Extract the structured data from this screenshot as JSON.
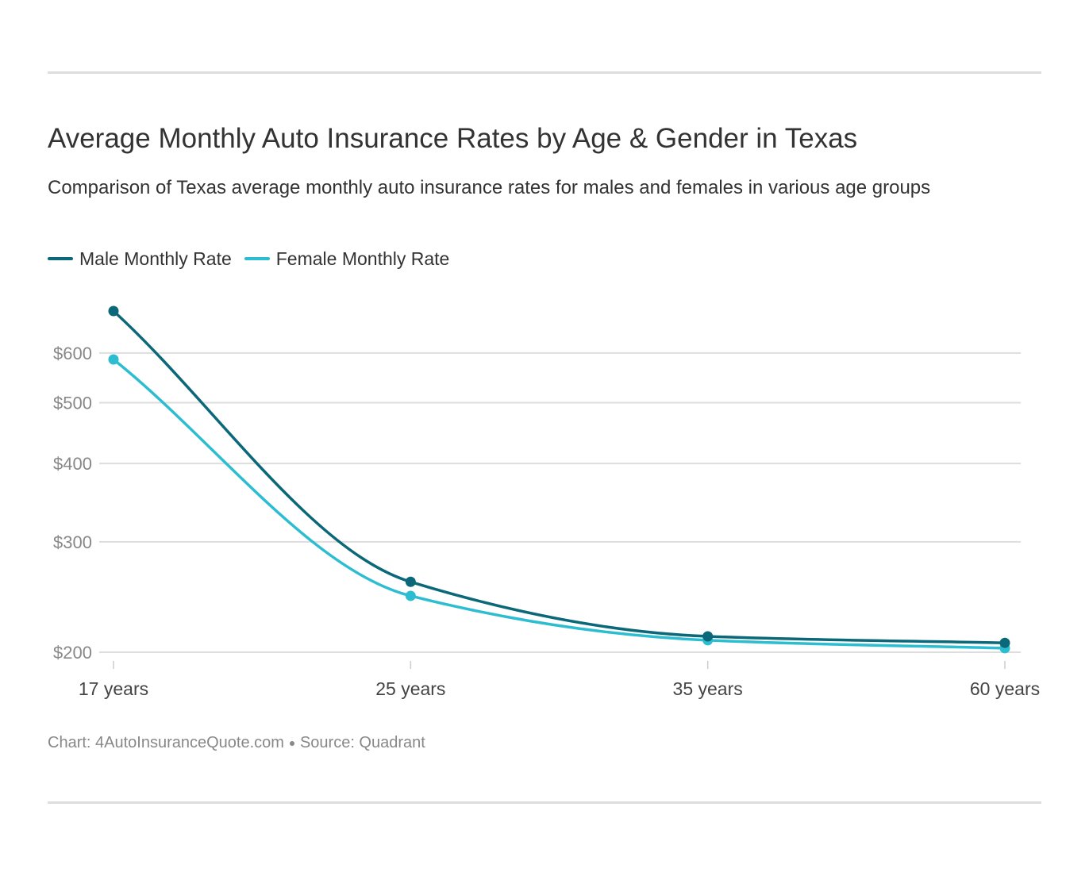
{
  "title": "Average Monthly Auto Insurance Rates by Age & Gender in Texas",
  "subtitle": "Comparison of Texas average monthly auto insurance rates for males and females in various age groups",
  "footer": {
    "chart_credit": "Chart: 4AutoInsuranceQuote.com",
    "source": "Source: Quadrant"
  },
  "chart_data": {
    "type": "line",
    "title": "Average Monthly Auto Insurance Rates by Age & Gender in Texas",
    "subtitle": "Comparison of Texas average monthly auto insurance rates for males and females in various age groups",
    "categories": [
      "17 years",
      "25 years",
      "35 years",
      "60 years"
    ],
    "y_scale": "log",
    "y_ticks": [
      200,
      300,
      400,
      500,
      600
    ],
    "y_tick_labels": [
      "$200",
      "$300",
      "$400",
      "$500",
      "$600"
    ],
    "ylim": [
      195,
      700
    ],
    "grid": true,
    "legend_position": "top-left",
    "series": [
      {
        "name": "Male Monthly Rate",
        "color": "#0b6878",
        "values": [
          700,
          259,
          212,
          207
        ]
      },
      {
        "name": "Female Monthly Rate",
        "color": "#2cbdd1",
        "values": [
          586,
          246,
          209,
          203
        ]
      }
    ]
  }
}
